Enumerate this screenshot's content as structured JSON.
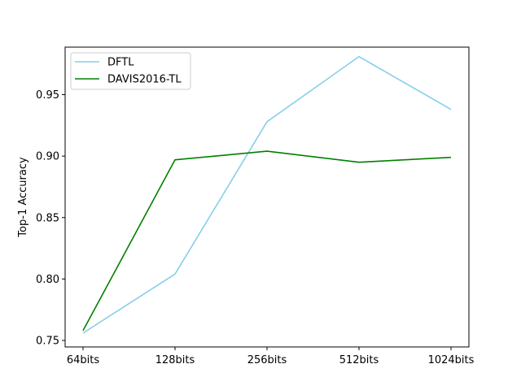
{
  "chart_data": {
    "type": "line",
    "title": "",
    "xlabel": "",
    "ylabel": "Top-1 Accuracy",
    "categories": [
      "64bits",
      "128bits",
      "256bits",
      "512bits",
      "1024bits"
    ],
    "series": [
      {
        "name": "DFTL",
        "color": "#87ceeb",
        "values": [
          0.756,
          0.804,
          0.928,
          0.981,
          0.938
        ]
      },
      {
        "name": "DAVIS2016-TL",
        "color": "#008000",
        "values": [
          0.758,
          0.897,
          0.904,
          0.895,
          0.899
        ]
      }
    ],
    "yticks": [
      0.75,
      0.8,
      0.85,
      0.9,
      0.95
    ],
    "ytick_labels": [
      "0.75",
      "0.80",
      "0.85",
      "0.90",
      "0.95"
    ],
    "ylim": [
      0.7447,
      0.9887
    ],
    "grid": false,
    "legend_position": "top-left"
  }
}
